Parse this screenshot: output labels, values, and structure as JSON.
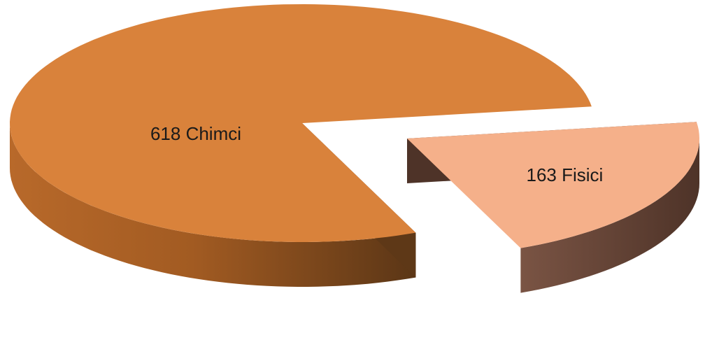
{
  "chart_data": {
    "type": "pie",
    "style": "3d-exploded",
    "categories": [
      "Chimci",
      "Fisici"
    ],
    "values": [
      618,
      163
    ],
    "labels": [
      "618 Chimci",
      "163 Fisici"
    ],
    "colors": {
      "Chimci": {
        "top": "#D9823B",
        "side_light": "#C8772F",
        "side_dark": "#5E3817"
      },
      "Fisici": {
        "top": "#F5B08A",
        "side_light": "#6E4C3E",
        "side_dark": "#4E3328"
      }
    },
    "exploded": [
      "Fisici"
    ],
    "legend": "none"
  }
}
